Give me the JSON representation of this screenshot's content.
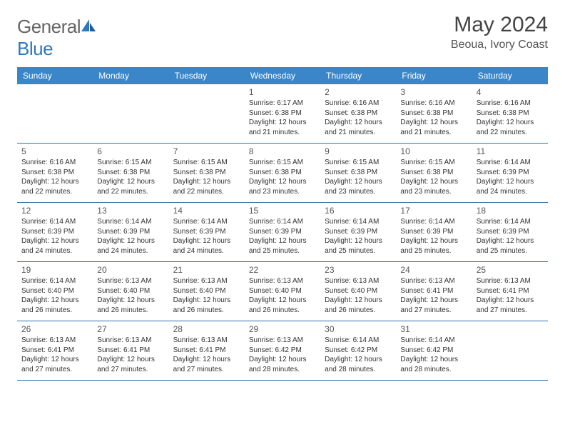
{
  "brand": {
    "general": "General",
    "blue": "Blue"
  },
  "header": {
    "title": "May 2024",
    "location": "Beoua, Ivory Coast"
  },
  "colors": {
    "headerBar": "#3a86c8",
    "rule": "#2f6ea8",
    "logoBlue": "#2f78bf"
  },
  "dow": [
    "Sunday",
    "Monday",
    "Tuesday",
    "Wednesday",
    "Thursday",
    "Friday",
    "Saturday"
  ],
  "weeks": [
    [
      null,
      null,
      null,
      {
        "n": "1",
        "sunrise": "Sunrise: 6:17 AM",
        "sunset": "Sunset: 6:38 PM",
        "day1": "Daylight: 12 hours",
        "day2": "and 21 minutes."
      },
      {
        "n": "2",
        "sunrise": "Sunrise: 6:16 AM",
        "sunset": "Sunset: 6:38 PM",
        "day1": "Daylight: 12 hours",
        "day2": "and 21 minutes."
      },
      {
        "n": "3",
        "sunrise": "Sunrise: 6:16 AM",
        "sunset": "Sunset: 6:38 PM",
        "day1": "Daylight: 12 hours",
        "day2": "and 21 minutes."
      },
      {
        "n": "4",
        "sunrise": "Sunrise: 6:16 AM",
        "sunset": "Sunset: 6:38 PM",
        "day1": "Daylight: 12 hours",
        "day2": "and 22 minutes."
      }
    ],
    [
      {
        "n": "5",
        "sunrise": "Sunrise: 6:16 AM",
        "sunset": "Sunset: 6:38 PM",
        "day1": "Daylight: 12 hours",
        "day2": "and 22 minutes."
      },
      {
        "n": "6",
        "sunrise": "Sunrise: 6:15 AM",
        "sunset": "Sunset: 6:38 PM",
        "day1": "Daylight: 12 hours",
        "day2": "and 22 minutes."
      },
      {
        "n": "7",
        "sunrise": "Sunrise: 6:15 AM",
        "sunset": "Sunset: 6:38 PM",
        "day1": "Daylight: 12 hours",
        "day2": "and 22 minutes."
      },
      {
        "n": "8",
        "sunrise": "Sunrise: 6:15 AM",
        "sunset": "Sunset: 6:38 PM",
        "day1": "Daylight: 12 hours",
        "day2": "and 23 minutes."
      },
      {
        "n": "9",
        "sunrise": "Sunrise: 6:15 AM",
        "sunset": "Sunset: 6:38 PM",
        "day1": "Daylight: 12 hours",
        "day2": "and 23 minutes."
      },
      {
        "n": "10",
        "sunrise": "Sunrise: 6:15 AM",
        "sunset": "Sunset: 6:38 PM",
        "day1": "Daylight: 12 hours",
        "day2": "and 23 minutes."
      },
      {
        "n": "11",
        "sunrise": "Sunrise: 6:14 AM",
        "sunset": "Sunset: 6:39 PM",
        "day1": "Daylight: 12 hours",
        "day2": "and 24 minutes."
      }
    ],
    [
      {
        "n": "12",
        "sunrise": "Sunrise: 6:14 AM",
        "sunset": "Sunset: 6:39 PM",
        "day1": "Daylight: 12 hours",
        "day2": "and 24 minutes."
      },
      {
        "n": "13",
        "sunrise": "Sunrise: 6:14 AM",
        "sunset": "Sunset: 6:39 PM",
        "day1": "Daylight: 12 hours",
        "day2": "and 24 minutes."
      },
      {
        "n": "14",
        "sunrise": "Sunrise: 6:14 AM",
        "sunset": "Sunset: 6:39 PM",
        "day1": "Daylight: 12 hours",
        "day2": "and 24 minutes."
      },
      {
        "n": "15",
        "sunrise": "Sunrise: 6:14 AM",
        "sunset": "Sunset: 6:39 PM",
        "day1": "Daylight: 12 hours",
        "day2": "and 25 minutes."
      },
      {
        "n": "16",
        "sunrise": "Sunrise: 6:14 AM",
        "sunset": "Sunset: 6:39 PM",
        "day1": "Daylight: 12 hours",
        "day2": "and 25 minutes."
      },
      {
        "n": "17",
        "sunrise": "Sunrise: 6:14 AM",
        "sunset": "Sunset: 6:39 PM",
        "day1": "Daylight: 12 hours",
        "day2": "and 25 minutes."
      },
      {
        "n": "18",
        "sunrise": "Sunrise: 6:14 AM",
        "sunset": "Sunset: 6:39 PM",
        "day1": "Daylight: 12 hours",
        "day2": "and 25 minutes."
      }
    ],
    [
      {
        "n": "19",
        "sunrise": "Sunrise: 6:14 AM",
        "sunset": "Sunset: 6:40 PM",
        "day1": "Daylight: 12 hours",
        "day2": "and 26 minutes."
      },
      {
        "n": "20",
        "sunrise": "Sunrise: 6:13 AM",
        "sunset": "Sunset: 6:40 PM",
        "day1": "Daylight: 12 hours",
        "day2": "and 26 minutes."
      },
      {
        "n": "21",
        "sunrise": "Sunrise: 6:13 AM",
        "sunset": "Sunset: 6:40 PM",
        "day1": "Daylight: 12 hours",
        "day2": "and 26 minutes."
      },
      {
        "n": "22",
        "sunrise": "Sunrise: 6:13 AM",
        "sunset": "Sunset: 6:40 PM",
        "day1": "Daylight: 12 hours",
        "day2": "and 26 minutes."
      },
      {
        "n": "23",
        "sunrise": "Sunrise: 6:13 AM",
        "sunset": "Sunset: 6:40 PM",
        "day1": "Daylight: 12 hours",
        "day2": "and 26 minutes."
      },
      {
        "n": "24",
        "sunrise": "Sunrise: 6:13 AM",
        "sunset": "Sunset: 6:41 PM",
        "day1": "Daylight: 12 hours",
        "day2": "and 27 minutes."
      },
      {
        "n": "25",
        "sunrise": "Sunrise: 6:13 AM",
        "sunset": "Sunset: 6:41 PM",
        "day1": "Daylight: 12 hours",
        "day2": "and 27 minutes."
      }
    ],
    [
      {
        "n": "26",
        "sunrise": "Sunrise: 6:13 AM",
        "sunset": "Sunset: 6:41 PM",
        "day1": "Daylight: 12 hours",
        "day2": "and 27 minutes."
      },
      {
        "n": "27",
        "sunrise": "Sunrise: 6:13 AM",
        "sunset": "Sunset: 6:41 PM",
        "day1": "Daylight: 12 hours",
        "day2": "and 27 minutes."
      },
      {
        "n": "28",
        "sunrise": "Sunrise: 6:13 AM",
        "sunset": "Sunset: 6:41 PM",
        "day1": "Daylight: 12 hours",
        "day2": "and 27 minutes."
      },
      {
        "n": "29",
        "sunrise": "Sunrise: 6:13 AM",
        "sunset": "Sunset: 6:42 PM",
        "day1": "Daylight: 12 hours",
        "day2": "and 28 minutes."
      },
      {
        "n": "30",
        "sunrise": "Sunrise: 6:14 AM",
        "sunset": "Sunset: 6:42 PM",
        "day1": "Daylight: 12 hours",
        "day2": "and 28 minutes."
      },
      {
        "n": "31",
        "sunrise": "Sunrise: 6:14 AM",
        "sunset": "Sunset: 6:42 PM",
        "day1": "Daylight: 12 hours",
        "day2": "and 28 minutes."
      },
      null
    ]
  ]
}
